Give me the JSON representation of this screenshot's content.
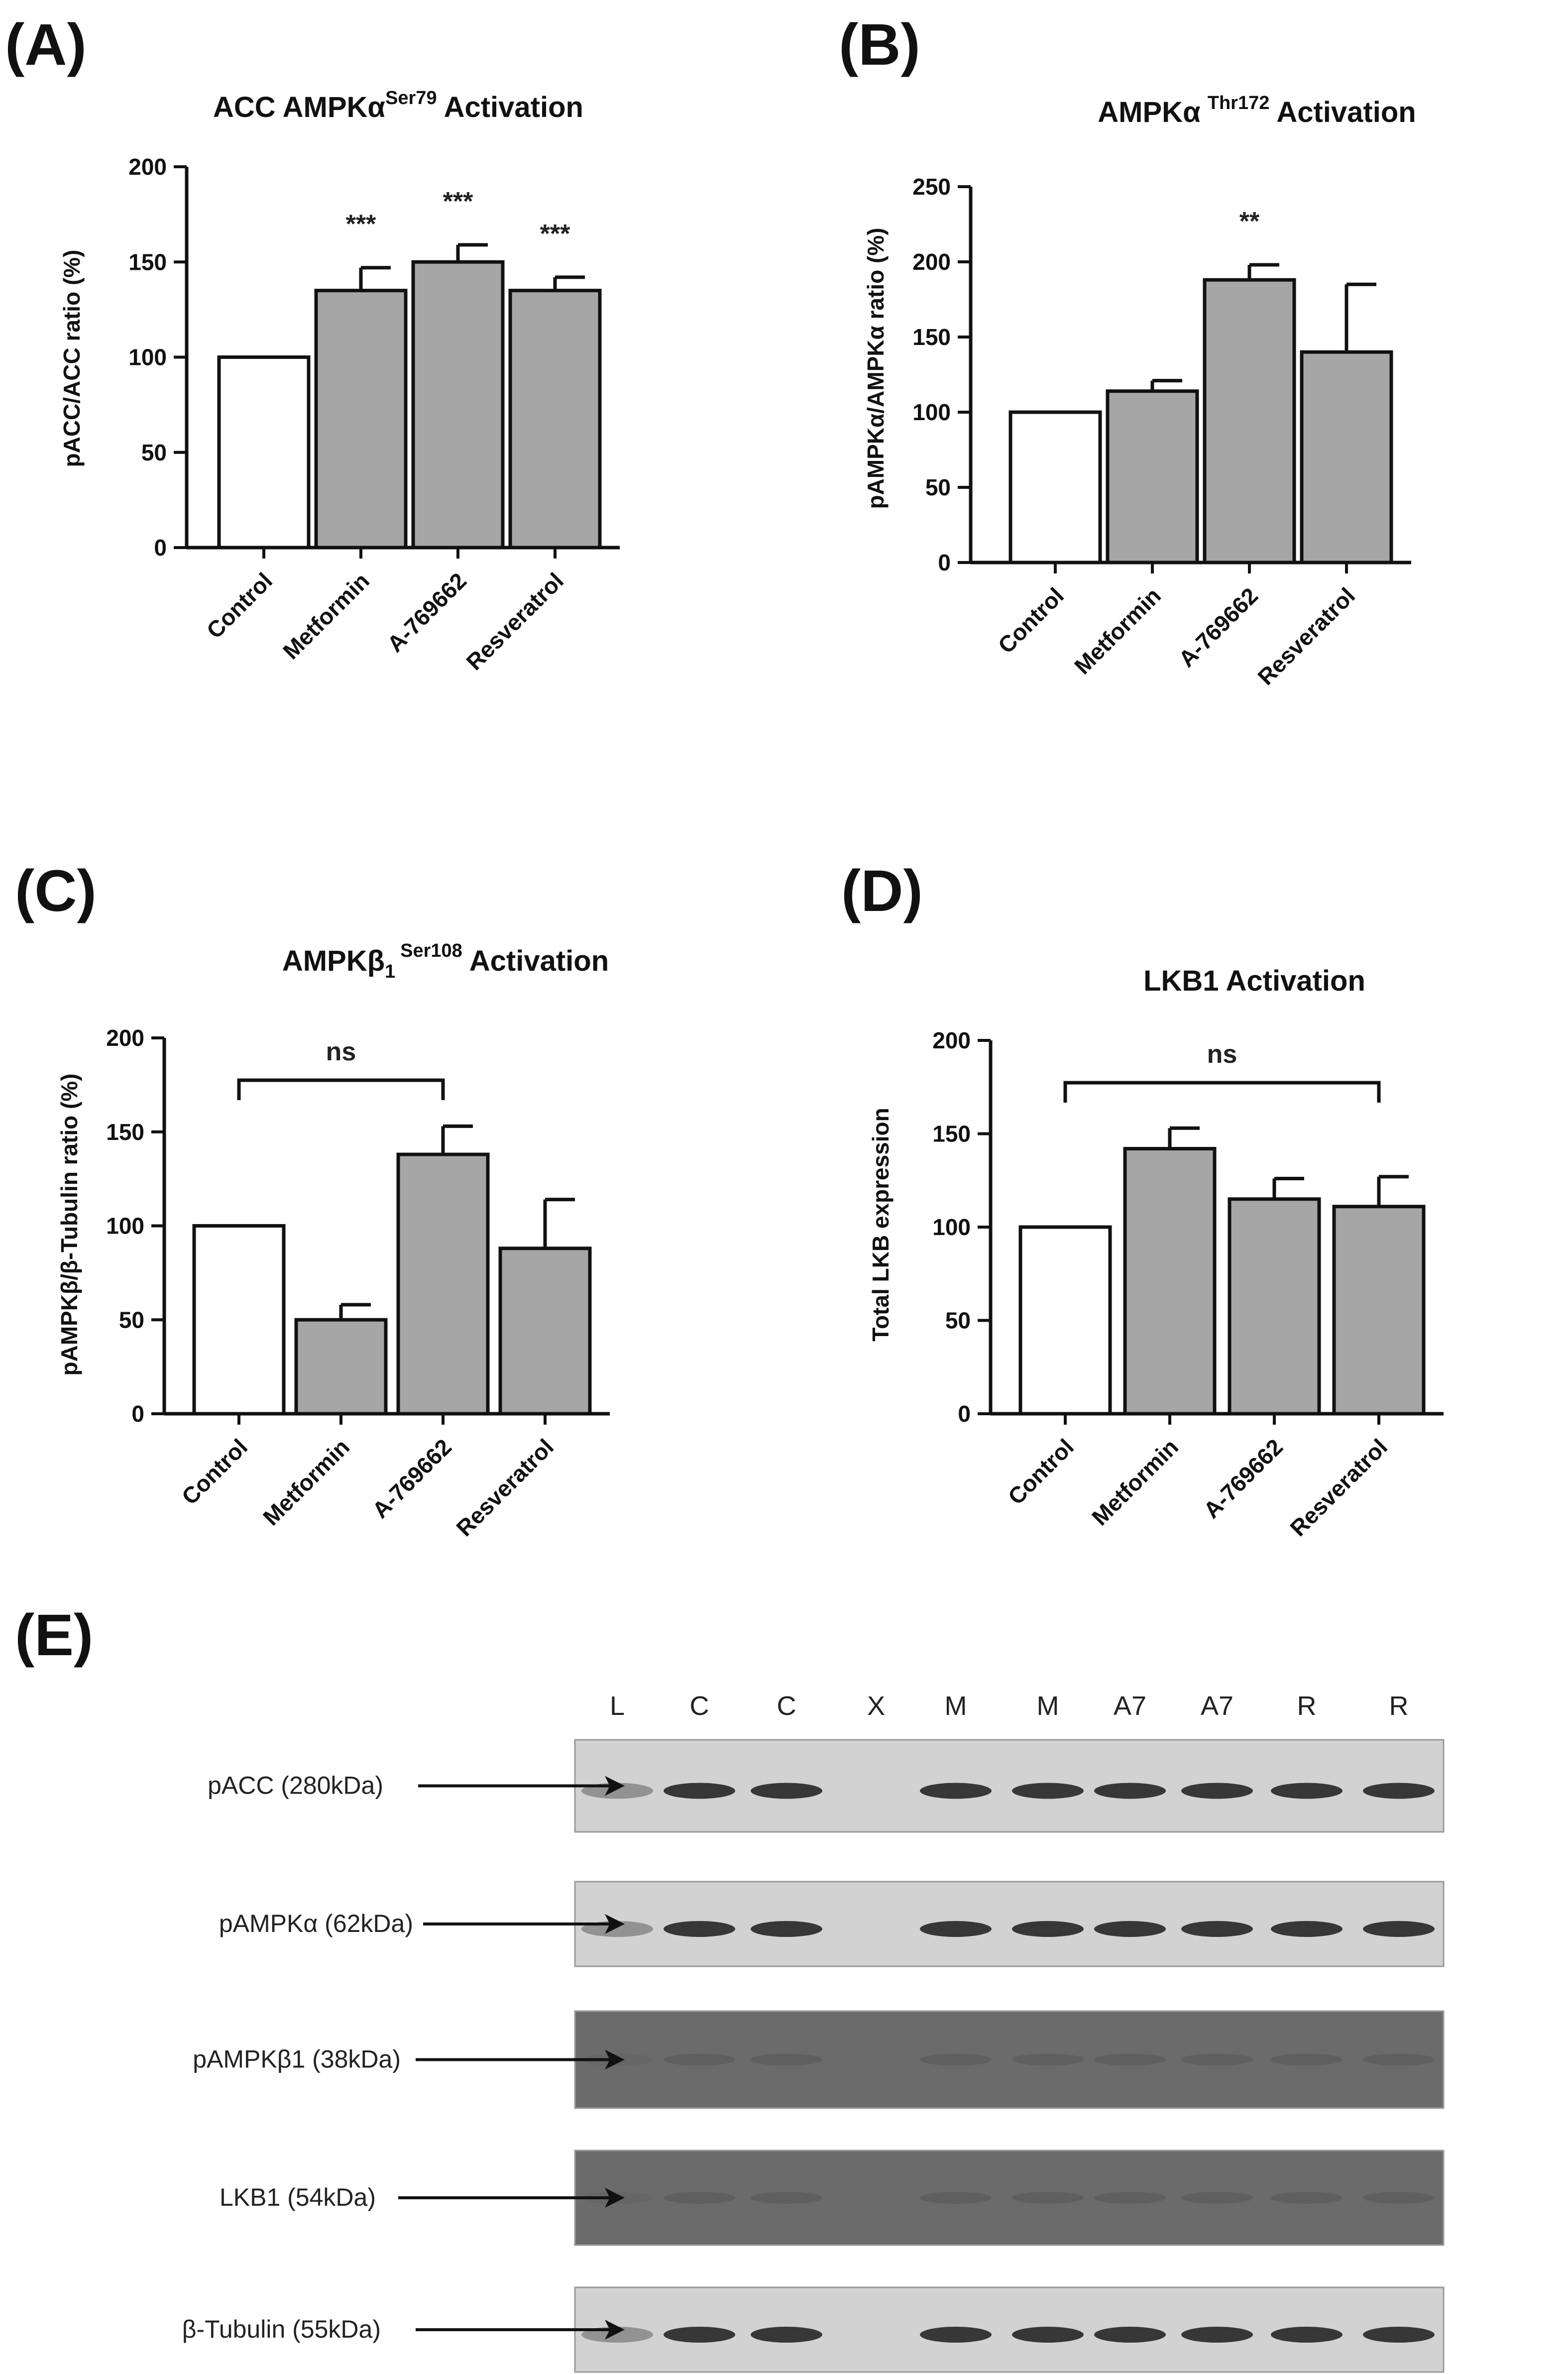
{
  "figure": {
    "panels": [
      {
        "label": "(A)",
        "title_main": "ACC AMPKα",
        "title_sup": "Ser79",
        "title_suffix": " Activation",
        "ylabel": "pACC/ACC ratio  (%)",
        "ticks": [
          "0",
          "50",
          "100",
          "150",
          "200"
        ]
      },
      {
        "label": "(B)",
        "title_main": "AMPKα",
        "title_sup": "Thr172",
        "title_suffix": " Activation",
        "ylabel": "pAMPKα/AMPKα ratio  (%)",
        "ticks": [
          "0",
          "50",
          "100",
          "150",
          "200",
          "250"
        ]
      },
      {
        "label": "(C)",
        "title_main": "AMPKβ",
        "title_sub": "1",
        "title_sup": "Ser108",
        "title_suffix": " Activation",
        "ylabel": "pAMPKβ/β-Tubulin ratio  (%)",
        "ticks": [
          "0",
          "50",
          "100",
          "150",
          "200"
        ]
      },
      {
        "label": "(D)",
        "title_main": "LKB1 Activation",
        "ylabel": "Total LKB expression",
        "ticks": [
          "0",
          "50",
          "100",
          "150",
          "200"
        ]
      }
    ],
    "blot": {
      "label": "(E)",
      "lanes": [
        "L",
        "C",
        "C",
        "X",
        "M",
        "M",
        "A7",
        "A7",
        "R",
        "R"
      ],
      "rows": [
        {
          "name": "pACC (280kDa)",
          "dark": false
        },
        {
          "name": "pAMPKα (62kDa)",
          "dark": false
        },
        {
          "name": "pAMPKβ1 (38kDa)",
          "dark": true
        },
        {
          "name": "LKB1 (54kDa)",
          "dark": true
        },
        {
          "name": "β-Tubulin (55kDa)",
          "dark": false
        }
      ]
    }
  },
  "chart_data": [
    {
      "type": "bar",
      "title": "ACC AMPKα Ser79 Activation",
      "ylabel": "pACC/ACC ratio  (%)",
      "categories": [
        "Control",
        "Metformin",
        "A-769662",
        "Resveratrol"
      ],
      "values": [
        100,
        135,
        150,
        135
      ],
      "errors": [
        0,
        12,
        9,
        7
      ],
      "significance": [
        "",
        "***",
        "***",
        "***"
      ],
      "bar_colors": [
        "#ffffff",
        "#a6a6a6",
        "#a6a6a6",
        "#a6a6a6"
      ],
      "ylim": [
        0,
        200
      ]
    },
    {
      "type": "bar",
      "title": "AMPKα Thr172 Activation",
      "ylabel": "pAMPKα/AMPKα ratio  (%)",
      "categories": [
        "Control",
        "Metformin",
        "A-769662",
        "Resveratrol"
      ],
      "values": [
        100,
        114,
        188,
        140
      ],
      "errors": [
        0,
        7,
        10,
        45
      ],
      "significance": [
        "",
        "",
        "**",
        ""
      ],
      "bar_colors": [
        "#ffffff",
        "#a6a6a6",
        "#a6a6a6",
        "#a6a6a6"
      ],
      "ylim": [
        0,
        250
      ]
    },
    {
      "type": "bar",
      "title": "AMPKβ1 Ser108 Activation",
      "ylabel": "pAMPKβ/β-Tubulin ratio  (%)",
      "categories": [
        "Control",
        "Metformin",
        "A-769662",
        "Resveratrol"
      ],
      "values": [
        100,
        50,
        138,
        88
      ],
      "errors": [
        0,
        8,
        15,
        26
      ],
      "comparison": {
        "from": 0,
        "to": 2,
        "label": "ns"
      },
      "bar_colors": [
        "#ffffff",
        "#a6a6a6",
        "#a6a6a6",
        "#a6a6a6"
      ],
      "ylim": [
        0,
        200
      ]
    },
    {
      "type": "bar",
      "title": "LKB1 Activation",
      "ylabel": "Total LKB expression",
      "categories": [
        "Control",
        "Metformin",
        "A-769662",
        "Resveratrol"
      ],
      "values": [
        100,
        142,
        115,
        111
      ],
      "errors": [
        0,
        11,
        11,
        16
      ],
      "comparison": {
        "from": 0,
        "to": 3,
        "label": "ns"
      },
      "bar_colors": [
        "#ffffff",
        "#a6a6a6",
        "#a6a6a6",
        "#a6a6a6"
      ],
      "ylim": [
        0,
        200
      ]
    }
  ]
}
